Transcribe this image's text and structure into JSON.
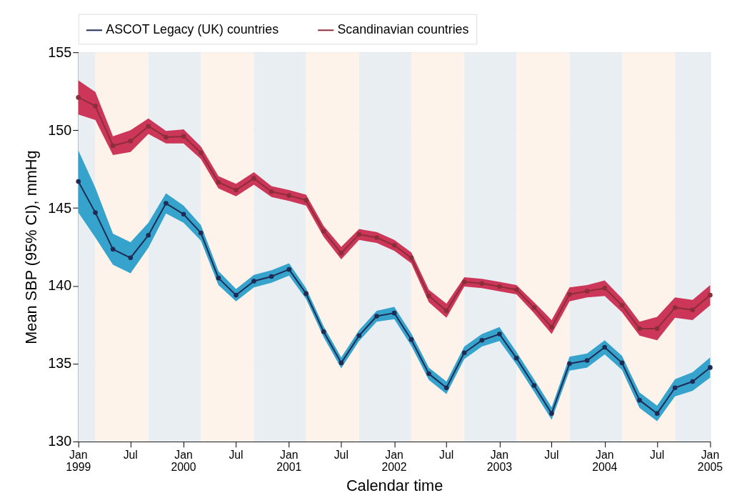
{
  "chart_data": {
    "type": "line",
    "xlabel": "Calendar time",
    "ylabel": "Mean SBP (95% CI), mmHg",
    "x": [
      "1999-01",
      "1999-03",
      "1999-05",
      "1999-07",
      "1999-09",
      "1999-11",
      "2000-01",
      "2000-03",
      "2000-05",
      "2000-07",
      "2000-09",
      "2000-11",
      "2001-01",
      "2001-03",
      "2001-05",
      "2001-07",
      "2001-09",
      "2001-11",
      "2002-01",
      "2002-03",
      "2002-05",
      "2002-07",
      "2002-09",
      "2002-11",
      "2003-01",
      "2003-03",
      "2003-05",
      "2003-07",
      "2003-09",
      "2003-11",
      "2004-01",
      "2004-03",
      "2004-05",
      "2004-07",
      "2004-09",
      "2004-11",
      "2005-01"
    ],
    "series": [
      {
        "name": "ASCOT Legacy (UK) countries",
        "color": "#1f2a55",
        "values": [
          146.7,
          144.7,
          142.35,
          141.8,
          143.25,
          145.3,
          144.6,
          143.4,
          140.5,
          139.4,
          140.3,
          140.6,
          141.05,
          139.5,
          137.05,
          135.05,
          136.8,
          138.05,
          138.25,
          136.55,
          134.35,
          133.45,
          135.7,
          136.5,
          136.9,
          135.35,
          133.6,
          131.8,
          135.0,
          135.2,
          136.05,
          135.05,
          132.65,
          131.8,
          133.45,
          133.85,
          134.75
        ],
        "lower": [
          144.7,
          143.1,
          141.35,
          140.8,
          142.45,
          144.65,
          144.05,
          142.9,
          140.05,
          139.0,
          139.9,
          140.2,
          140.65,
          139.15,
          136.7,
          134.7,
          136.45,
          137.7,
          137.85,
          136.15,
          133.95,
          133.05,
          135.3,
          136.1,
          136.45,
          134.95,
          133.2,
          131.4,
          134.55,
          134.75,
          135.6,
          134.6,
          132.15,
          131.3,
          132.9,
          133.25,
          134.1
        ],
        "upper": [
          148.7,
          146.3,
          143.35,
          142.8,
          144.05,
          145.95,
          145.15,
          143.9,
          140.95,
          139.8,
          140.7,
          141.0,
          141.45,
          139.85,
          137.4,
          135.4,
          137.15,
          138.4,
          138.65,
          136.95,
          134.75,
          133.85,
          136.1,
          136.9,
          137.35,
          135.75,
          134.0,
          132.2,
          135.45,
          135.65,
          136.5,
          135.5,
          133.15,
          132.3,
          134.0,
          134.45,
          135.4
        ]
      },
      {
        "name": "Scandinavian countries",
        "color": "#8b2e3a",
        "values": [
          152.1,
          151.55,
          149.0,
          149.3,
          150.25,
          149.55,
          149.6,
          148.55,
          146.65,
          146.15,
          146.9,
          146.05,
          145.8,
          145.5,
          143.5,
          142.1,
          143.3,
          143.1,
          142.6,
          141.8,
          139.35,
          138.4,
          140.25,
          140.15,
          139.95,
          139.75,
          138.6,
          137.35,
          139.45,
          139.65,
          139.85,
          138.75,
          137.25,
          137.25,
          138.6,
          138.45,
          139.4
        ],
        "lower": [
          151.0,
          150.65,
          148.4,
          148.6,
          149.75,
          149.15,
          149.15,
          148.15,
          146.25,
          145.75,
          146.5,
          145.7,
          145.45,
          145.15,
          143.15,
          141.7,
          142.95,
          142.75,
          142.25,
          141.45,
          138.95,
          137.95,
          139.95,
          139.85,
          139.65,
          139.45,
          138.25,
          136.9,
          139.0,
          139.25,
          139.35,
          138.3,
          136.8,
          136.5,
          137.95,
          137.8,
          138.75
        ],
        "upper": [
          153.2,
          152.45,
          149.6,
          150.0,
          150.75,
          149.95,
          150.05,
          148.95,
          147.05,
          146.55,
          147.3,
          146.4,
          146.15,
          145.85,
          143.85,
          142.5,
          143.65,
          143.45,
          142.95,
          142.15,
          139.75,
          138.85,
          140.55,
          140.45,
          140.25,
          140.05,
          138.95,
          137.8,
          139.9,
          140.05,
          140.35,
          139.2,
          137.7,
          138.0,
          139.25,
          139.1,
          140.05
        ]
      }
    ],
    "xlim": [
      "1999-01",
      "2005-01"
    ],
    "xticks": [
      {
        "value": "1999-01",
        "label": "Jan\n1999"
      },
      {
        "value": "1999-07",
        "label": "Jul"
      },
      {
        "value": "2000-01",
        "label": "Jan\n2000"
      },
      {
        "value": "2000-07",
        "label": "Jul"
      },
      {
        "value": "2001-01",
        "label": "Jan\n2001"
      },
      {
        "value": "2001-07",
        "label": "Jul"
      },
      {
        "value": "2002-01",
        "label": "Jan\n2002"
      },
      {
        "value": "2002-07",
        "label": "Jul"
      },
      {
        "value": "2003-01",
        "label": "Jan\n2003"
      },
      {
        "value": "2003-07",
        "label": "Jul"
      },
      {
        "value": "2004-01",
        "label": "Jan\n2004"
      },
      {
        "value": "2004-07",
        "label": "Jul"
      },
      {
        "value": "2005-01",
        "label": "Jan\n2005"
      }
    ],
    "ylim": [
      130,
      155
    ],
    "yticks": [
      130,
      135,
      140,
      145,
      150,
      155
    ],
    "bands": [
      {
        "axis": "x",
        "from": "1999-01",
        "to": "1999-03",
        "color": "#e9eef2"
      },
      {
        "axis": "x",
        "from": "1999-03",
        "to": "1999-09",
        "color": "#fdf3ea"
      },
      {
        "axis": "x",
        "from": "1999-09",
        "to": "2000-03",
        "color": "#e9eef2"
      },
      {
        "axis": "x",
        "from": "2000-03",
        "to": "2000-09",
        "color": "#fdf3ea"
      },
      {
        "axis": "x",
        "from": "2000-09",
        "to": "2001-03",
        "color": "#e9eef2"
      },
      {
        "axis": "x",
        "from": "2001-03",
        "to": "2001-09",
        "color": "#fdf3ea"
      },
      {
        "axis": "x",
        "from": "2001-09",
        "to": "2002-03",
        "color": "#e9eef2"
      },
      {
        "axis": "x",
        "from": "2002-03",
        "to": "2002-09",
        "color": "#fdf3ea"
      },
      {
        "axis": "x",
        "from": "2002-09",
        "to": "2003-03",
        "color": "#e9eef2"
      },
      {
        "axis": "x",
        "from": "2003-03",
        "to": "2003-09",
        "color": "#fdf3ea"
      },
      {
        "axis": "x",
        "from": "2003-09",
        "to": "2004-03",
        "color": "#e9eef2"
      },
      {
        "axis": "x",
        "from": "2004-03",
        "to": "2004-09",
        "color": "#fdf3ea"
      },
      {
        "axis": "x",
        "from": "2004-09",
        "to": "2005-01",
        "color": "#e9eef2"
      }
    ],
    "grid": "y",
    "legend": "top",
    "marker": "circle",
    "line_style": "solid"
  }
}
